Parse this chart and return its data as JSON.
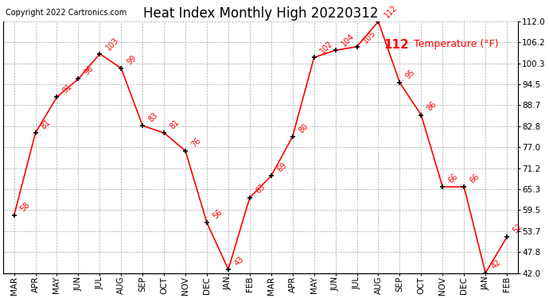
{
  "title": "Heat Index Monthly High 20220312",
  "copyright": "Copyright 2022 Cartronics.com",
  "legend_label": "Temperature (°F)",
  "months": [
    "MAR",
    "APR",
    "MAY",
    "JUN",
    "JUL",
    "AUG",
    "SEP",
    "OCT",
    "NOV",
    "DEC",
    "JAN",
    "FEB",
    "MAR",
    "APR",
    "MAY",
    "JUN",
    "JUL",
    "AUG",
    "SEP",
    "OCT",
    "NOV",
    "DEC",
    "JAN",
    "FEB"
  ],
  "values": [
    58,
    81,
    91,
    96,
    103,
    99,
    83,
    81,
    76,
    56,
    43,
    63,
    69,
    80,
    102,
    104,
    105,
    112,
    95,
    86,
    66,
    66,
    42,
    52
  ],
  "ylim": [
    42.0,
    112.0
  ],
  "yticks": [
    42.0,
    47.8,
    53.7,
    59.5,
    65.3,
    71.2,
    77.0,
    82.8,
    88.7,
    94.5,
    100.3,
    106.2,
    112.0
  ],
  "line_color": "red",
  "marker_color": "black",
  "grid_color": "#aaaaaa",
  "bg_color": "white",
  "title_fontsize": 12,
  "tick_fontsize": 7.5,
  "annotation_fontsize": 7,
  "legend_max_value": "112",
  "legend_max_fontsize": 11,
  "legend_text_fontsize": 9
}
